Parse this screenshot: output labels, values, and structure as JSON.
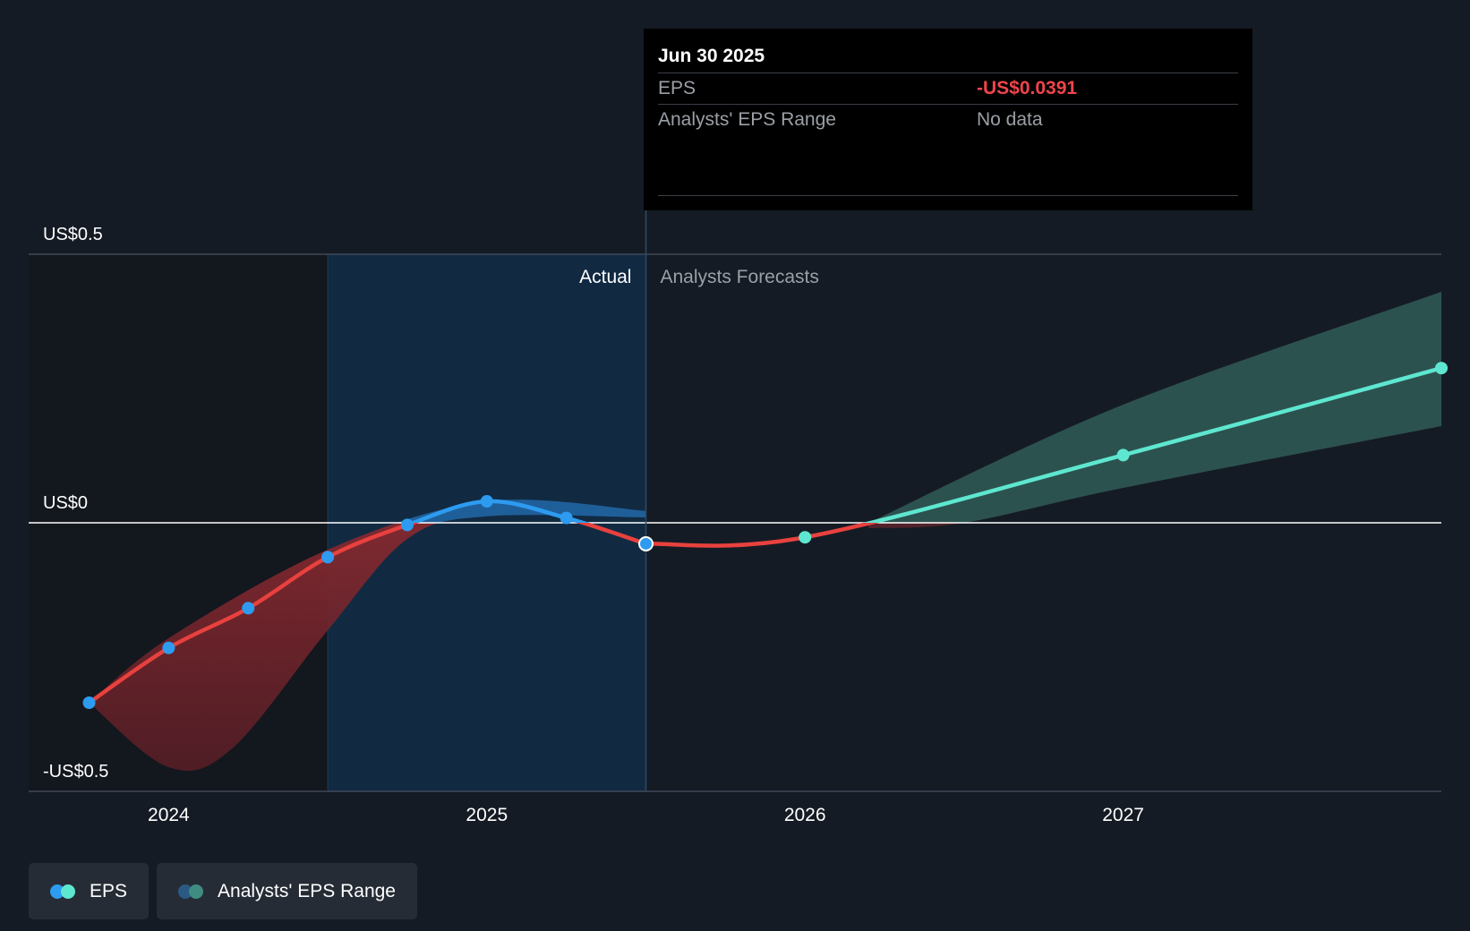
{
  "chart_data": {
    "type": "line",
    "y_axis": {
      "labels": [
        "US$0.5",
        "US$0",
        "-US$0.5"
      ],
      "values": [
        0.5,
        0,
        -0.5
      ],
      "ylim": [
        -0.5,
        0.5
      ]
    },
    "x_axis": {
      "labels": [
        "2024",
        "2025",
        "2026",
        "2027"
      ],
      "values": [
        2024.0,
        2025.0,
        2026.0,
        2027.0
      ],
      "xlim": [
        2023.56,
        2028.0
      ]
    },
    "section_labels": {
      "actual": "Actual",
      "forecast": "Analysts Forecasts"
    },
    "actual_end": 2025.5,
    "past_region_start": 2024.5,
    "series": [
      {
        "name": "EPS",
        "kind": "actual",
        "points": [
          {
            "x": 2023.75,
            "y": -0.335
          },
          {
            "x": 2024.0,
            "y": -0.233
          },
          {
            "x": 2024.25,
            "y": -0.159
          },
          {
            "x": 2024.5,
            "y": -0.064
          },
          {
            "x": 2024.75,
            "y": -0.004
          },
          {
            "x": 2025.0,
            "y": 0.04
          },
          {
            "x": 2025.25,
            "y": 0.009
          },
          {
            "x": 2025.5,
            "y": -0.0391
          }
        ]
      },
      {
        "name": "EPS",
        "kind": "forecast",
        "points": [
          {
            "x": 2025.5,
            "y": -0.0391
          },
          {
            "x": 2026.0,
            "y": -0.027
          },
          {
            "x": 2027.0,
            "y": 0.126
          },
          {
            "x": 2028.0,
            "y": 0.288
          }
        ]
      }
    ],
    "actual_range": {
      "upper": [
        {
          "x": 2023.75,
          "y": -0.335
        },
        {
          "x": 2024.0,
          "y": -0.215
        },
        {
          "x": 2024.5,
          "y": -0.05
        },
        {
          "x": 2025.0,
          "y": 0.04
        },
        {
          "x": 2025.5,
          "y": 0.022
        }
      ],
      "lower": [
        {
          "x": 2025.5,
          "y": 0.01
        },
        {
          "x": 2025.0,
          "y": 0.012
        },
        {
          "x": 2024.75,
          "y": -0.03
        },
        {
          "x": 2024.5,
          "y": -0.2
        },
        {
          "x": 2024.2,
          "y": -0.42
        },
        {
          "x": 2024.0,
          "y": -0.455
        },
        {
          "x": 2023.75,
          "y": -0.335
        }
      ]
    },
    "forecast_range": {
      "upper": [
        {
          "x": 2026.2,
          "y": 0.0
        },
        {
          "x": 2027.0,
          "y": 0.22
        },
        {
          "x": 2028.0,
          "y": 0.43
        }
      ],
      "lower": [
        {
          "x": 2028.0,
          "y": 0.18
        },
        {
          "x": 2027.0,
          "y": 0.065
        },
        {
          "x": 2026.5,
          "y": 0.0
        },
        {
          "x": 2026.2,
          "y": -0.01
        }
      ]
    },
    "colors": {
      "actual_line": "#2d9bf0",
      "negative_line": "#e8413e",
      "forecast_line": "#5ee7d0",
      "forecast_band": "#2f5954",
      "actual_band": "#2268a8",
      "negative_band": "#7a2a30",
      "past_region": "#112a42"
    },
    "tooltip": {
      "date": "Jun 30 2025",
      "rows": [
        {
          "label": "EPS",
          "value": "-US$0.0391"
        },
        {
          "label": "Analysts' EPS Range",
          "value": "No data"
        }
      ]
    },
    "legend": [
      {
        "label": "EPS",
        "colors": [
          "#2d9bf0",
          "#5ee7d0"
        ]
      },
      {
        "label": "Analysts' EPS Range",
        "colors": [
          "#2a5a84",
          "#3f8c83"
        ]
      }
    ]
  }
}
